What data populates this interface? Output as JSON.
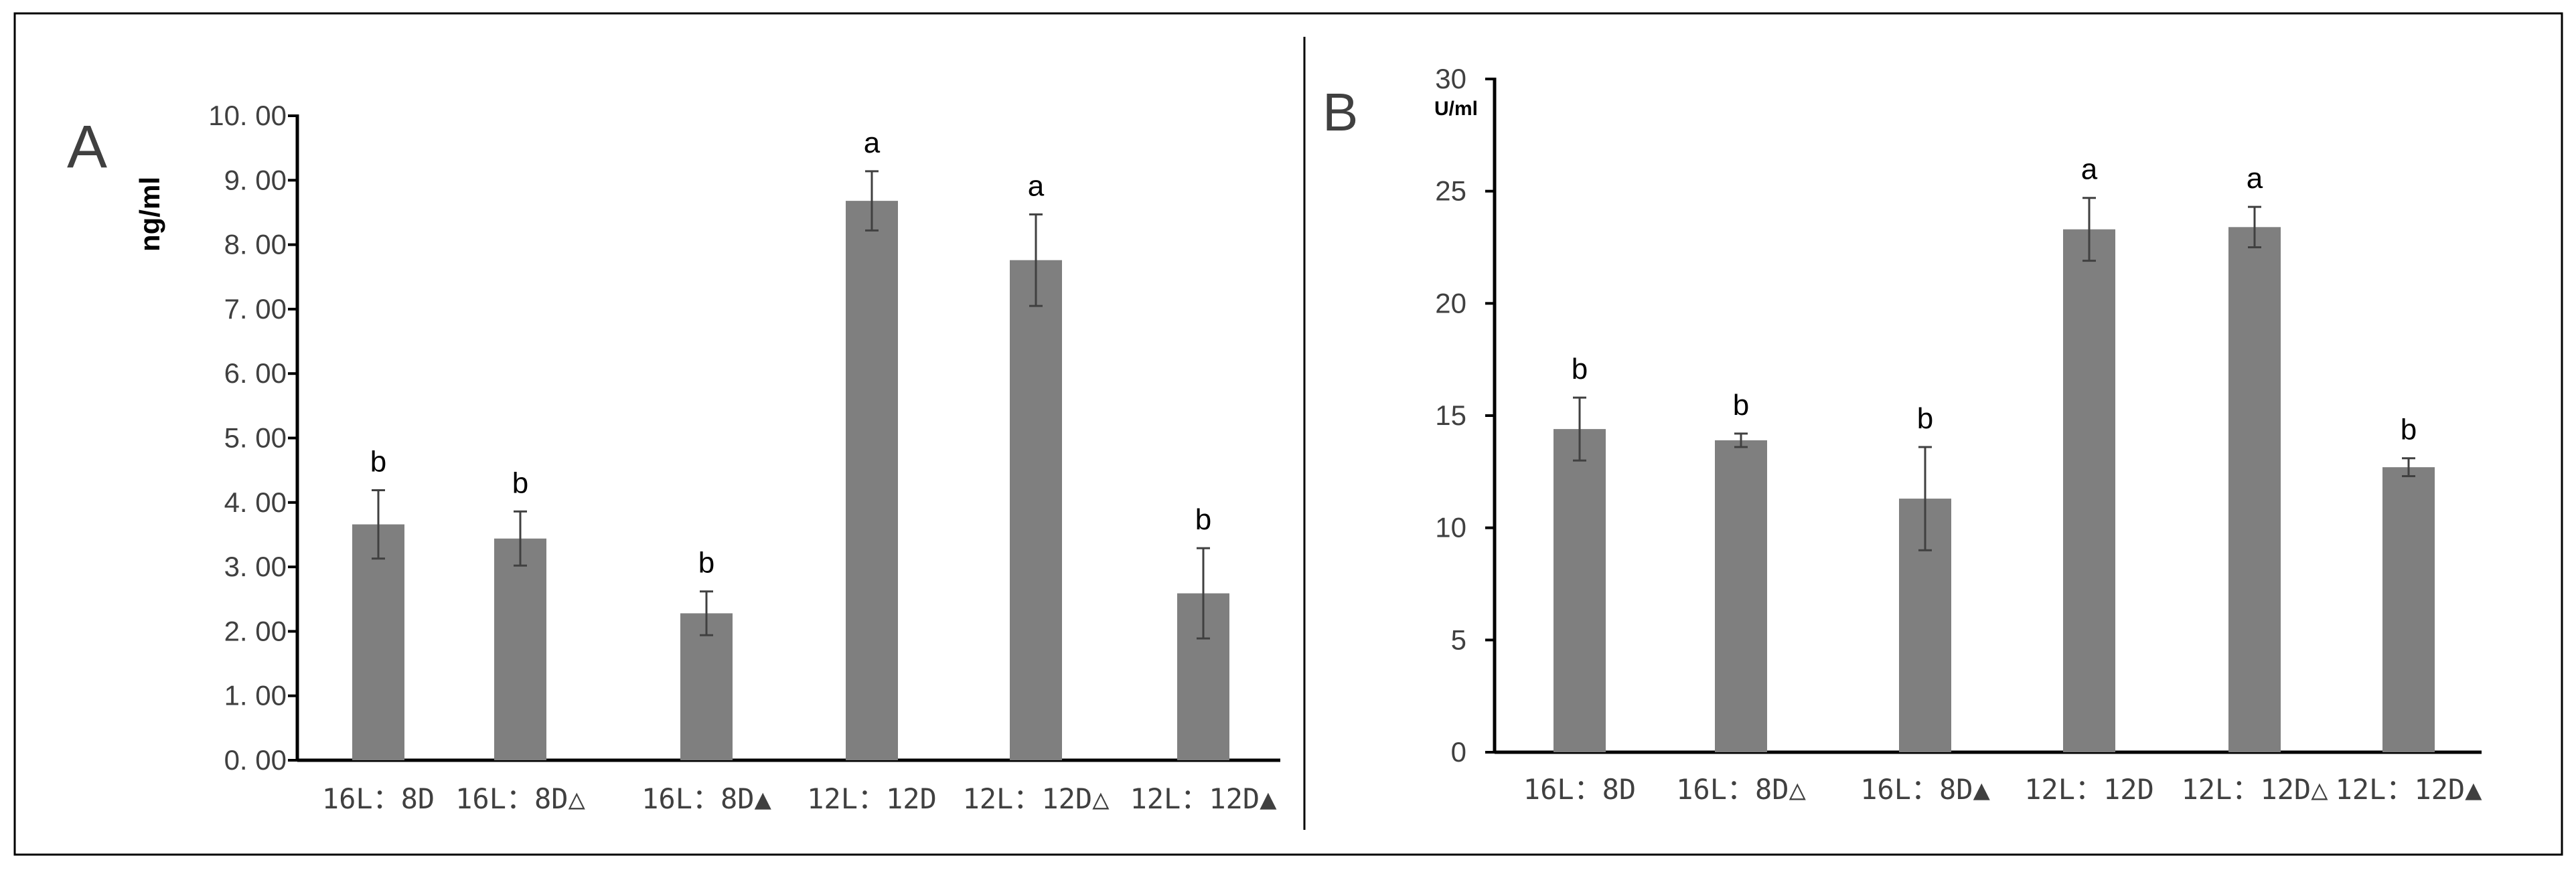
{
  "chart_data": [
    {
      "type": "bar",
      "panel_label": "A",
      "ylabel": "ng/ml",
      "categories": [
        "16L：8D",
        "16L：8D△",
        "16L：8D▲",
        "12L：12D",
        "12L：12D△",
        "12L：12D▲"
      ],
      "values": [
        3.66,
        3.44,
        2.28,
        8.68,
        7.76,
        2.59
      ],
      "errors": [
        0.53,
        0.42,
        0.34,
        0.46,
        0.71,
        0.7
      ],
      "significance": [
        "b",
        "b",
        "b",
        "a",
        "a",
        "b"
      ],
      "ylim": [
        0,
        10
      ],
      "yticks": [
        0,
        1,
        2,
        3,
        4,
        5,
        6,
        7,
        8,
        9,
        10
      ],
      "ytick_labels": [
        "0. 00",
        "1. 00",
        "2. 00",
        "3. 00",
        "4. 00",
        "5. 00",
        "6. 00",
        "7. 00",
        "8. 00",
        "9. 00",
        "10. 00"
      ],
      "bar_color": "#7f7f7f",
      "grid": false
    },
    {
      "type": "bar",
      "panel_label": "B",
      "ylabel": "U/ml",
      "categories": [
        "16L：8D",
        "16L：8D△",
        "16L：8D▲",
        "12L：12D",
        "12L：12D△",
        "12L：12D▲"
      ],
      "values": [
        14.4,
        13.9,
        11.3,
        23.3,
        23.4,
        12.7
      ],
      "errors": [
        1.4,
        0.3,
        2.3,
        1.4,
        0.9,
        0.4
      ],
      "significance": [
        "b",
        "b",
        "b",
        "a",
        "a",
        "b"
      ],
      "ylim": [
        0,
        30
      ],
      "yticks": [
        0,
        5,
        10,
        15,
        20,
        25,
        30
      ],
      "ytick_labels": [
        "0",
        "5",
        "10",
        "15",
        "20",
        "25",
        "30"
      ],
      "bar_color": "#7f7f7f",
      "grid": false
    }
  ]
}
